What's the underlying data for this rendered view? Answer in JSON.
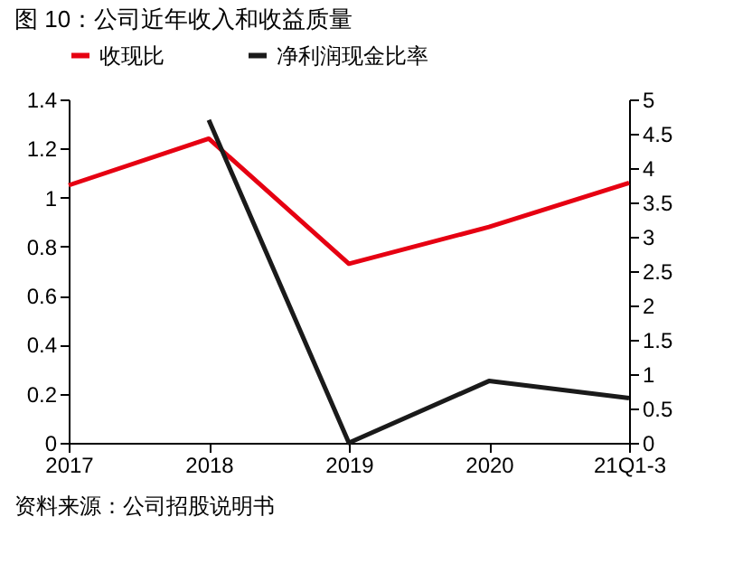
{
  "chart_data": {
    "type": "line",
    "title": "图 10：公司近年收入和收益质量",
    "categories": [
      "2017",
      "2018",
      "2019",
      "2020",
      "21Q1-3"
    ],
    "series": [
      {
        "name": "收现比",
        "color": "#e60012",
        "values": [
          1.05,
          1.24,
          0.73,
          0.88,
          1.06
        ]
      },
      {
        "name": "净利润现金比率",
        "color": "#1a1a1a",
        "axis": "y2",
        "values": [
          null,
          4.7,
          0,
          0.9,
          0.65
        ]
      }
    ],
    "ylim": [
      0,
      1.4
    ],
    "yticks": [
      0,
      0.2,
      0.4,
      0.6,
      0.8,
      1,
      1.2,
      1.4
    ],
    "y2lim": [
      0,
      5
    ],
    "y2ticks": [
      0,
      0.5,
      1,
      1.5,
      2,
      2.5,
      3,
      3.5,
      4,
      4.5,
      5
    ],
    "legend": "top",
    "grid": false,
    "marker": "none",
    "line_style": "solid",
    "annotations": [
      "资料来源：公司招股说明书"
    ]
  }
}
